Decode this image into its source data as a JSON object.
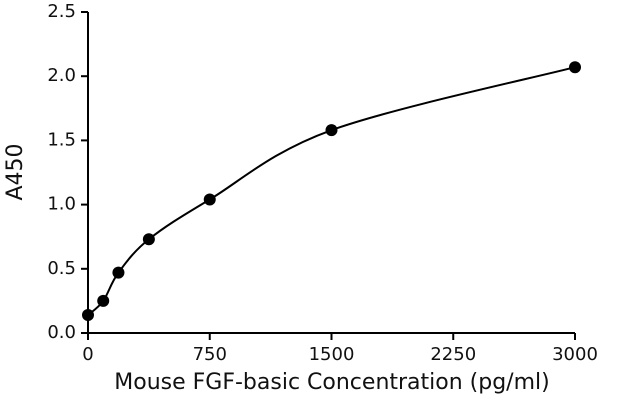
{
  "chart_data": {
    "type": "scatter",
    "x_label": "Mouse FGF-basic Concentration (pg/ml)",
    "y_label": "A450",
    "series": [
      {
        "name": "standard",
        "color": "#000000",
        "x": [
          0,
          93.75,
          187.5,
          375,
          750,
          1500,
          3000
        ],
        "values": [
          0.14,
          0.25,
          0.47,
          0.73,
          1.04,
          1.58,
          2.07
        ]
      }
    ],
    "xlim": [
      0,
      3000
    ],
    "xticks": [
      0,
      750,
      1500,
      2250,
      3000
    ],
    "ylim": [
      0,
      2.5
    ],
    "yticks": [
      {
        "value": 0,
        "label": "0.0"
      },
      0.5,
      {
        "value": 1,
        "label": "1.0"
      },
      1.5,
      {
        "value": 2,
        "label": "2.0"
      },
      2.5
    ],
    "grid": false,
    "fit_curve": true
  }
}
